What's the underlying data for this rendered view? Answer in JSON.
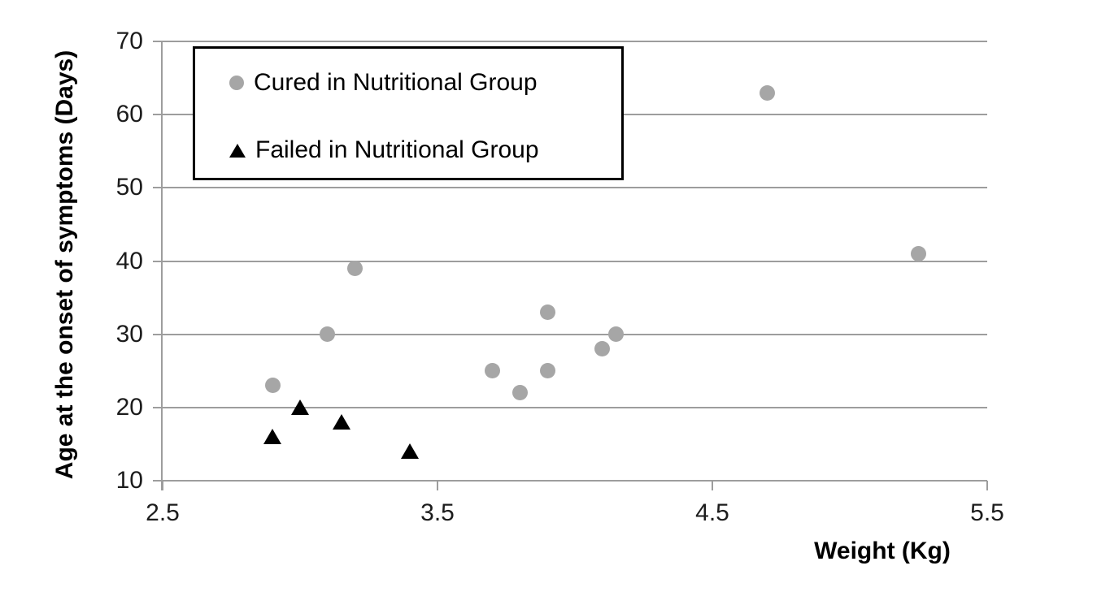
{
  "chart_data": {
    "type": "scatter",
    "title": "",
    "xlabel": "Weight (Kg)",
    "ylabel": "Age at the onset of symptoms (Days)",
    "xlim": [
      2.5,
      5.5
    ],
    "ylim": [
      10,
      70
    ],
    "xticks": [
      "2.5",
      "3.5",
      "4.5",
      "5.5"
    ],
    "yticks": [
      "10",
      "20",
      "30",
      "40",
      "50",
      "60",
      "70"
    ],
    "grid": "horizontal gridlines on",
    "legend_position": "top-left inside plot area, boxed",
    "axis_color": "#9d9d9d",
    "tick_label_color": "#1c1c1c",
    "series": [
      {
        "name": "Cured in Nutritional Group",
        "marker": "circle",
        "color": "#a6a6a6",
        "points": [
          {
            "x": 2.9,
            "y": 23
          },
          {
            "x": 3.1,
            "y": 30
          },
          {
            "x": 3.2,
            "y": 39
          },
          {
            "x": 3.7,
            "y": 25
          },
          {
            "x": 3.8,
            "y": 22
          },
          {
            "x": 3.9,
            "y": 33
          },
          {
            "x": 3.9,
            "y": 25
          },
          {
            "x": 4.1,
            "y": 28
          },
          {
            "x": 4.15,
            "y": 30
          },
          {
            "x": 4.7,
            "y": 63
          },
          {
            "x": 5.25,
            "y": 41
          }
        ]
      },
      {
        "name": "Failed in Nutritional Group",
        "marker": "triangle",
        "color": "#000000",
        "points": [
          {
            "x": 2.9,
            "y": 16
          },
          {
            "x": 3.0,
            "y": 20
          },
          {
            "x": 3.15,
            "y": 18
          },
          {
            "x": 3.4,
            "y": 14
          }
        ]
      }
    ]
  }
}
